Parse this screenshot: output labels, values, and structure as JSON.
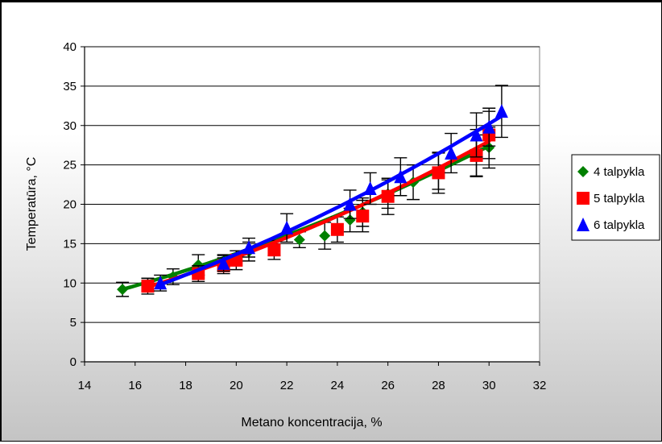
{
  "chart_data": {
    "type": "scatter",
    "title": "",
    "xlabel": "Metano koncentracija, %",
    "ylabel": "Temperatūra, °C",
    "xlim": [
      14,
      32
    ],
    "ylim": [
      0,
      40
    ],
    "x_ticks": [
      "14",
      "16",
      "18",
      "20",
      "22",
      "24",
      "26",
      "28",
      "30",
      "32"
    ],
    "y_ticks": [
      "0",
      "5",
      "10",
      "15",
      "20",
      "25",
      "30",
      "35",
      "40"
    ],
    "grid": "horizontal major gridlines",
    "legend_position": "right",
    "series": [
      {
        "name": "4 talpykla",
        "color": "#008000",
        "marker": "diamond",
        "points": [
          {
            "x": 15.5,
            "y": 9.2,
            "err": 0.9
          },
          {
            "x": 16.5,
            "y": 9.8,
            "err": 0.8
          },
          {
            "x": 17.5,
            "y": 10.8,
            "err": 1.0
          },
          {
            "x": 18.5,
            "y": 12.3,
            "err": 1.3
          },
          {
            "x": 19.5,
            "y": 12.6,
            "err": 1.0
          },
          {
            "x": 20.5,
            "y": 14.0,
            "err": 1.2
          },
          {
            "x": 21.5,
            "y": 14.5,
            "err": 1.0
          },
          {
            "x": 22.5,
            "y": 15.5,
            "err": 1.0
          },
          {
            "x": 23.5,
            "y": 16.0,
            "err": 1.7
          },
          {
            "x": 24.5,
            "y": 18.0,
            "err": 1.5
          },
          {
            "x": 25.0,
            "y": 19.0,
            "err": 1.8
          },
          {
            "x": 26.0,
            "y": 21.3,
            "err": 1.8
          },
          {
            "x": 27.0,
            "y": 22.8,
            "err": 2.2
          },
          {
            "x": 28.0,
            "y": 24.2,
            "err": 2.3
          },
          {
            "x": 29.5,
            "y": 26.5,
            "err": 3.0
          },
          {
            "x": 30.0,
            "y": 27.2,
            "err": 2.6
          }
        ],
        "fit": [
          9.2,
          27.4
        ]
      },
      {
        "name": "5 talpykla",
        "color": "#ff0000",
        "marker": "square",
        "points": [
          {
            "x": 16.5,
            "y": 9.6,
            "err": 1.0
          },
          {
            "x": 18.5,
            "y": 11.2,
            "err": 1.0
          },
          {
            "x": 19.5,
            "y": 12.2,
            "err": 1.0
          },
          {
            "x": 20.0,
            "y": 12.9,
            "err": 1.2
          },
          {
            "x": 21.5,
            "y": 14.2,
            "err": 1.2
          },
          {
            "x": 24.0,
            "y": 16.8,
            "err": 1.6
          },
          {
            "x": 25.0,
            "y": 18.5,
            "err": 2.0
          },
          {
            "x": 26.0,
            "y": 21.0,
            "err": 2.3
          },
          {
            "x": 28.0,
            "y": 24.0,
            "err": 2.6
          },
          {
            "x": 29.5,
            "y": 26.2,
            "err": 2.6
          },
          {
            "x": 30.0,
            "y": 28.8,
            "err": 3.0
          }
        ],
        "fit": [
          9.5,
          28.0
        ]
      },
      {
        "name": "6 talpykla",
        "color": "#0000ff",
        "marker": "triangle",
        "points": [
          {
            "x": 17.0,
            "y": 10.0,
            "err": 1.0
          },
          {
            "x": 19.5,
            "y": 12.5,
            "err": 1.0
          },
          {
            "x": 20.5,
            "y": 14.5,
            "err": 1.2
          },
          {
            "x": 22.0,
            "y": 17.0,
            "err": 1.8
          },
          {
            "x": 24.5,
            "y": 20.0,
            "err": 1.8
          },
          {
            "x": 25.3,
            "y": 22.0,
            "err": 2.0
          },
          {
            "x": 26.5,
            "y": 23.5,
            "err": 2.4
          },
          {
            "x": 28.5,
            "y": 26.5,
            "err": 2.5
          },
          {
            "x": 29.5,
            "y": 28.8,
            "err": 2.8
          },
          {
            "x": 30.0,
            "y": 29.8,
            "err": 2.4
          },
          {
            "x": 30.5,
            "y": 31.8,
            "err": 3.3
          }
        ],
        "fit": [
          9.8,
          31.2
        ]
      }
    ]
  }
}
